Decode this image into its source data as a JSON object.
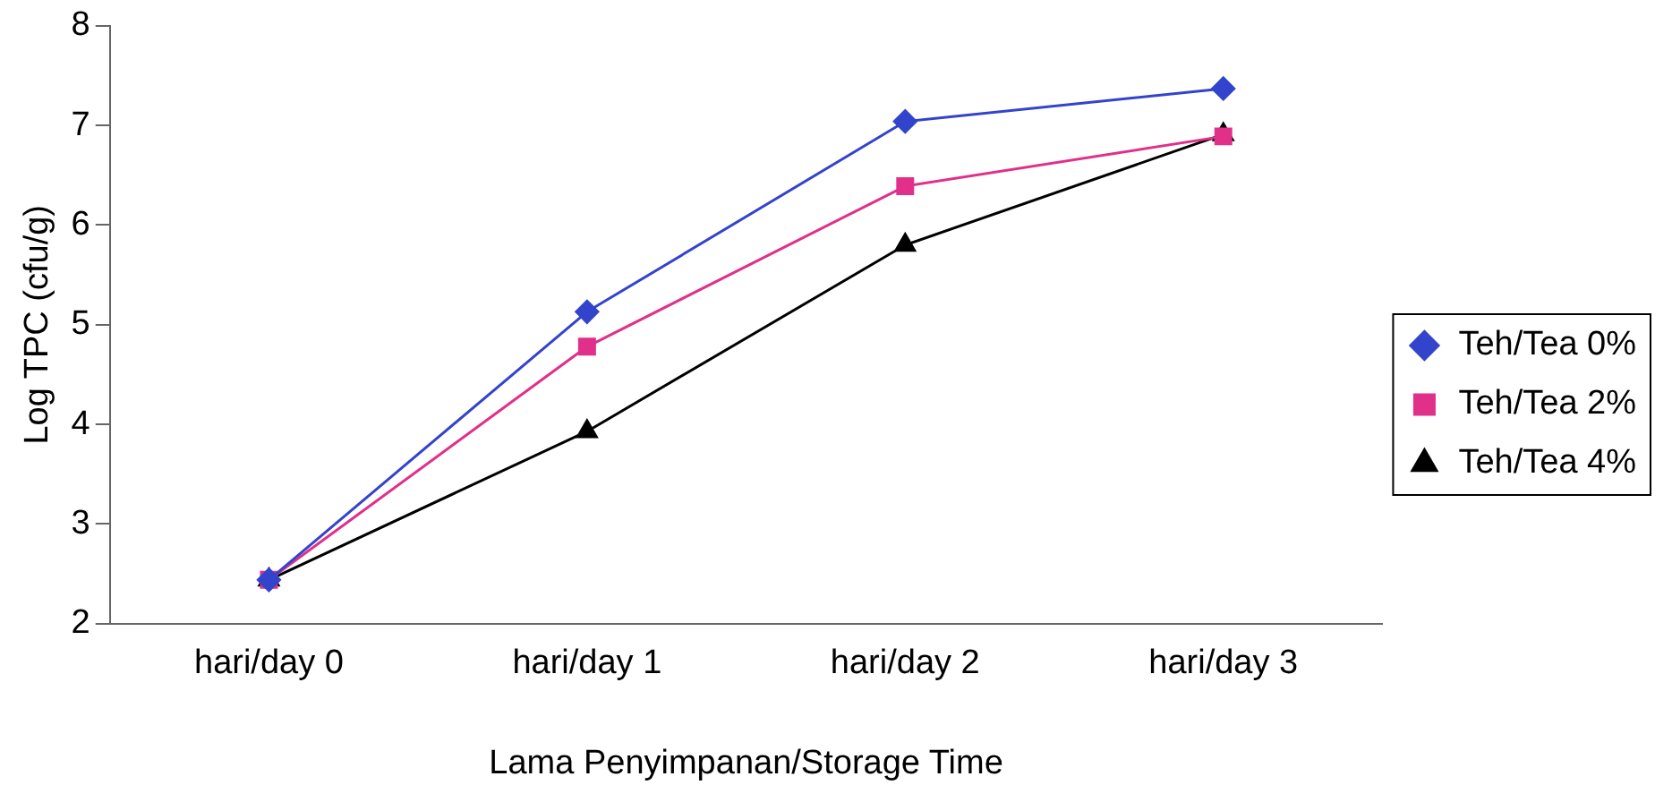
{
  "chart_data": {
    "type": "line",
    "xlabel": "Lama Penyimpanan/Storage Time",
    "ylabel": "Log TPC (cfu/g)",
    "categories": [
      "hari/day 0",
      "hari/day 1",
      "hari/day 2",
      "hari/day 3"
    ],
    "series": [
      {
        "name": "Teh/Tea 0%",
        "color": "#3344cc",
        "marker": "diamond",
        "values": [
          2.44,
          5.13,
          7.04,
          7.37
        ]
      },
      {
        "name": "Teh/Tea 2%",
        "color": "#e0308a",
        "marker": "square",
        "values": [
          2.44,
          4.78,
          6.39,
          6.89
        ]
      },
      {
        "name": "Teh/Tea 4%",
        "color": "#000000",
        "marker": "triangle",
        "values": [
          2.44,
          3.93,
          5.8,
          6.91
        ]
      }
    ],
    "ylim": [
      2,
      8
    ],
    "yticks": [
      2,
      3,
      4,
      5,
      6,
      7,
      8
    ],
    "grid": false,
    "legend": "right",
    "line_style": "solid"
  }
}
